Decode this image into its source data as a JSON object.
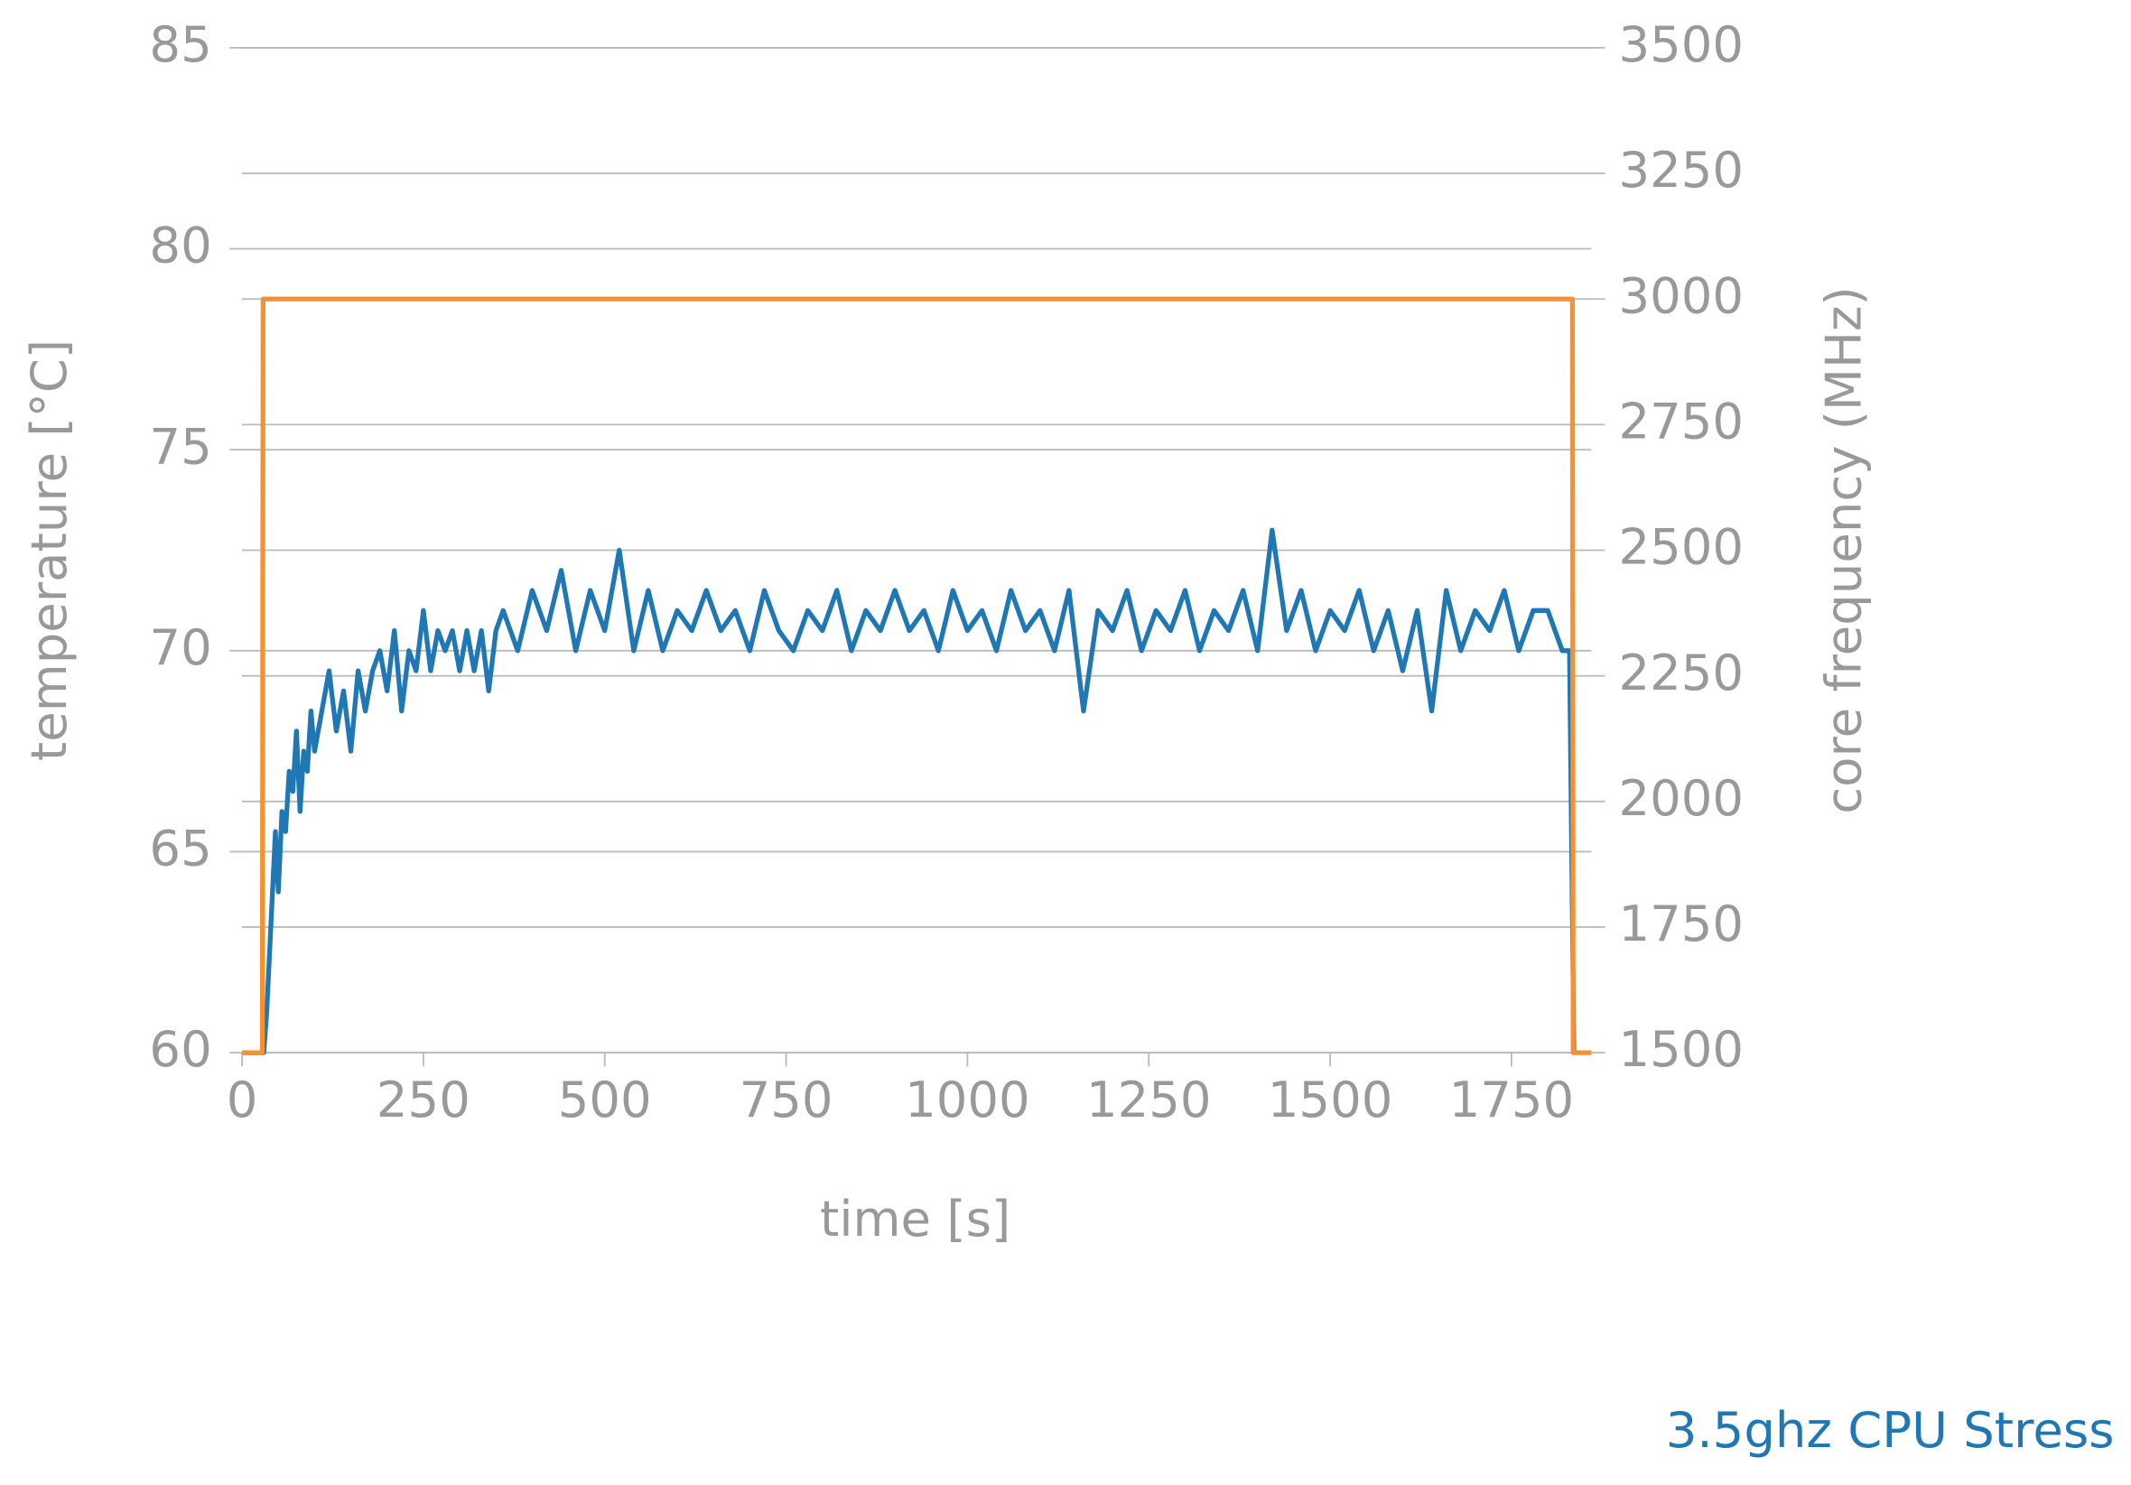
{
  "chart_data": {
    "type": "line",
    "title": "3.5ghz CPU Stress",
    "x_label": "time [s]",
    "y_label": "temperature [°C]",
    "y2_label": "core frequency (MHz)",
    "xlim": [
      -17,
      1860
    ],
    "xticks": [
      0,
      250,
      500,
      750,
      1000,
      1250,
      1500,
      1750
    ],
    "ylim": [
      60,
      85
    ],
    "yticks": [
      60,
      65,
      70,
      75,
      80,
      85
    ],
    "y2lim": [
      1500,
      3500
    ],
    "y2ticks": [
      1500,
      1750,
      2000,
      2250,
      2500,
      2750,
      3000,
      3250,
      3500
    ],
    "grid": true,
    "series": [
      {
        "color": "#1f77b4",
        "axis": "y",
        "x": [
          0,
          30,
          34,
          38,
          42,
          46,
          50,
          55,
          60,
          65,
          70,
          75,
          80,
          85,
          90,
          95,
          100,
          110,
          120,
          130,
          140,
          150,
          160,
          170,
          180,
          190,
          200,
          210,
          220,
          230,
          240,
          250,
          260,
          270,
          280,
          290,
          300,
          310,
          320,
          330,
          340,
          350,
          360,
          380,
          400,
          420,
          440,
          460,
          480,
          500,
          520,
          540,
          560,
          580,
          600,
          620,
          640,
          660,
          680,
          700,
          720,
          740,
          760,
          780,
          800,
          820,
          840,
          860,
          880,
          900,
          920,
          940,
          960,
          980,
          1000,
          1020,
          1040,
          1060,
          1080,
          1100,
          1120,
          1140,
          1160,
          1180,
          1200,
          1220,
          1240,
          1260,
          1280,
          1300,
          1320,
          1340,
          1360,
          1380,
          1400,
          1420,
          1440,
          1460,
          1480,
          1500,
          1520,
          1540,
          1560,
          1580,
          1600,
          1620,
          1640,
          1660,
          1680,
          1700,
          1720,
          1740,
          1760,
          1780,
          1800,
          1820,
          1830,
          1836
        ],
        "values": [
          60,
          60,
          61,
          62.5,
          64,
          65.5,
          64,
          66,
          65.5,
          67,
          66.5,
          68,
          66,
          67.5,
          67,
          68.5,
          67.5,
          68.5,
          69.5,
          68,
          69,
          67.5,
          69.5,
          68.5,
          69.5,
          70,
          69,
          70.5,
          68.5,
          70,
          69.5,
          71,
          69.5,
          70.5,
          70,
          70.5,
          69.5,
          70.5,
          69.5,
          70.5,
          69,
          70.5,
          71,
          70,
          71.5,
          70.5,
          72,
          70,
          71.5,
          70.5,
          72.5,
          70,
          71.5,
          70,
          71,
          70.5,
          71.5,
          70.5,
          71,
          70,
          71.5,
          70.5,
          70,
          71,
          70.5,
          71.5,
          70,
          71,
          70.5,
          71.5,
          70.5,
          71,
          70,
          71.5,
          70.5,
          71,
          70,
          71.5,
          70.5,
          71,
          70,
          71.5,
          68.5,
          71,
          70.5,
          71.5,
          70,
          71,
          70.5,
          71.5,
          70,
          71,
          70.5,
          71.5,
          70,
          73,
          70.5,
          71.5,
          70,
          71,
          70.5,
          71.5,
          70,
          71,
          69.5,
          71,
          68.5,
          71.5,
          70,
          71,
          70.5,
          71.5,
          70,
          71,
          71,
          70,
          70,
          60
        ]
      },
      {
        "color": "#f7902f",
        "axis": "y2",
        "x": [
          0,
          28,
          29,
          1834,
          1835,
          1860
        ],
        "values": [
          1500,
          1500,
          3000,
          3000,
          1500,
          1500
        ]
      }
    ]
  }
}
